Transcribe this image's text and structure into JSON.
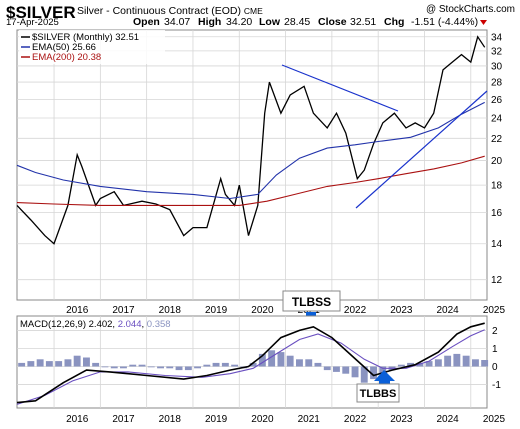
{
  "header": {
    "symbol": "$SILVER",
    "description": "Silver - Continuous Contract (EOD)",
    "exchange": "CME",
    "copyright": "@ StockCharts.com",
    "date": "17-Apr-2025",
    "open_label": "Open",
    "open": "34.07",
    "high_label": "High",
    "high": "34.20",
    "low_label": "Low",
    "low": "28.45",
    "close_label": "Close",
    "close": "32.51",
    "chg_label": "Chg",
    "chg": "-1.51 (-4.44%)"
  },
  "legend": {
    "series_label": "$SILVER (Monthly) 32.51",
    "ema50_label": "EMA(50) 25.66",
    "ema200_label": "EMA(200) 20.38"
  },
  "colors": {
    "price": "#000000",
    "ema50": "#2233aa",
    "ema200": "#aa1111",
    "trendline": "#1a33cc",
    "callout": "#0a5fd8",
    "macd_line": "#000000",
    "signal_line": "#6a4fc0",
    "histogram": "#8a93c0",
    "grid": "#d6d6d6"
  },
  "annotations": {
    "top": "TLBSS",
    "bottom": "TLBBS"
  },
  "macd_legend": {
    "label": "MACD(12,26,9)",
    "macd": "2.402",
    "signal": "2.044",
    "histogram": "0.358"
  },
  "chart_data": [
    {
      "type": "line",
      "title": "$SILVER (Monthly) 32.51",
      "x_ticks": [
        "2016",
        "2017",
        "2018",
        "2019",
        "2020",
        "2021",
        "2022",
        "2023",
        "2024",
        "2025"
      ],
      "y_scale": "log",
      "y_ticks": [
        "12",
        "14",
        "16",
        "18",
        "20",
        "22",
        "24",
        "26",
        "28",
        "30",
        "32",
        "34"
      ],
      "ylim": [
        11,
        35
      ],
      "x_range": [
        2015.2,
        2025.35
      ],
      "grid": true,
      "legend_position": "top-left",
      "series": [
        {
          "name": "$SILVER (Monthly)",
          "x": [
            2015.2,
            2015.5,
            2015.8,
            2016.0,
            2016.3,
            2016.5,
            2016.6,
            2016.9,
            2017.0,
            2017.3,
            2017.5,
            2017.9,
            2018.2,
            2018.5,
            2018.8,
            2019.0,
            2019.3,
            2019.6,
            2019.7,
            2019.9,
            2020.0,
            2020.2,
            2020.4,
            2020.55,
            2020.65,
            2020.9,
            2021.1,
            2021.4,
            2021.6,
            2021.9,
            2022.1,
            2022.3,
            2022.55,
            2022.7,
            2022.9,
            2023.1,
            2023.35,
            2023.6,
            2023.8,
            2024.0,
            2024.2,
            2024.4,
            2024.6,
            2024.8,
            2025.0,
            2025.15,
            2025.3
          ],
          "values": [
            16.5,
            15.5,
            14.5,
            14.0,
            16.5,
            20.5,
            19.5,
            16.5,
            17.0,
            17.5,
            16.5,
            16.8,
            16.6,
            16.2,
            14.5,
            15.0,
            15.0,
            18.5,
            17.3,
            16.5,
            18.0,
            14.5,
            16.5,
            24.5,
            28.0,
            24.5,
            26.5,
            27.5,
            24.5,
            23.0,
            24.5,
            22.5,
            18.5,
            19.2,
            21.5,
            23.5,
            24.5,
            23.0,
            23.5,
            23.0,
            24.5,
            29.5,
            30.5,
            31.5,
            30.5,
            34.0,
            32.5
          ],
          "color": "#000000"
        },
        {
          "name": "EMA(50)",
          "x": [
            2015.2,
            2015.6,
            2016.2,
            2017.0,
            2018.0,
            2019.0,
            2019.8,
            2020.4,
            2020.8,
            2021.3,
            2021.9,
            2022.5,
            2023.0,
            2023.7,
            2024.3,
            2024.8,
            2025.3
          ],
          "values": [
            19.6,
            19.0,
            18.4,
            17.9,
            17.5,
            17.3,
            17.0,
            17.3,
            18.8,
            20.2,
            21.1,
            21.4,
            21.7,
            22.1,
            23.0,
            24.4,
            25.66
          ],
          "color": "#2233aa"
        },
        {
          "name": "EMA(200)",
          "x": [
            2015.2,
            2016.0,
            2017.0,
            2018.0,
            2019.0,
            2020.0,
            2020.6,
            2021.2,
            2021.9,
            2022.5,
            2023.0,
            2023.6,
            2024.2,
            2024.8,
            2025.3
          ],
          "values": [
            16.7,
            16.6,
            16.5,
            16.5,
            16.5,
            16.5,
            16.8,
            17.3,
            17.9,
            18.2,
            18.5,
            18.9,
            19.3,
            19.8,
            20.38
          ],
          "color": "#aa1111"
        }
      ]
    },
    {
      "type": "line",
      "title": "MACD(12,26,9) 2.402, 2.044, 0.358",
      "x_ticks": [
        "2016",
        "2017",
        "2018",
        "2019",
        "2020",
        "2021",
        "2022",
        "2023",
        "2024",
        "2025"
      ],
      "y_ticks": [
        "2",
        "1",
        "0",
        "-1"
      ],
      "ylim": [
        -2.3,
        2.8
      ],
      "x_range": [
        2015.2,
        2025.35
      ],
      "grid": true,
      "series": [
        {
          "name": "MACD",
          "x": [
            2015.2,
            2015.6,
            2016.2,
            2016.7,
            2017.2,
            2018.0,
            2018.8,
            2019.3,
            2019.8,
            2020.2,
            2020.5,
            2020.9,
            2021.3,
            2021.6,
            2022.0,
            2022.6,
            2022.9,
            2023.3,
            2023.8,
            2024.3,
            2024.7,
            2025.0,
            2025.3
          ],
          "values": [
            -2.0,
            -1.9,
            -0.9,
            -0.2,
            -0.3,
            -0.5,
            -0.7,
            -0.5,
            -0.2,
            0.0,
            0.6,
            1.6,
            2.0,
            2.2,
            1.6,
            0.2,
            -0.5,
            -0.2,
            0.1,
            0.8,
            1.8,
            2.2,
            2.4
          ],
          "color": "#000000"
        },
        {
          "name": "Signal",
          "x": [
            2015.2,
            2015.8,
            2016.4,
            2017.0,
            2017.6,
            2018.4,
            2019.2,
            2019.8,
            2020.3,
            2020.8,
            2021.3,
            2021.7,
            2022.2,
            2022.7,
            2023.1,
            2023.6,
            2024.1,
            2024.6,
            2025.0,
            2025.3
          ],
          "values": [
            -2.1,
            -1.6,
            -0.8,
            -0.3,
            -0.3,
            -0.5,
            -0.6,
            -0.4,
            -0.1,
            0.7,
            1.5,
            1.8,
            1.3,
            0.4,
            -0.1,
            -0.1,
            0.3,
            1.1,
            1.7,
            2.04
          ],
          "color": "#6a4fc0"
        },
        {
          "name": "Histogram",
          "x": [
            2015.3,
            2015.5,
            2015.7,
            2015.9,
            2016.1,
            2016.3,
            2016.5,
            2016.7,
            2016.9,
            2017.1,
            2017.3,
            2017.5,
            2017.7,
            2017.9,
            2018.1,
            2018.3,
            2018.5,
            2018.7,
            2018.9,
            2019.1,
            2019.3,
            2019.5,
            2019.7,
            2019.9,
            2020.1,
            2020.3,
            2020.5,
            2020.7,
            2020.9,
            2021.1,
            2021.3,
            2021.5,
            2021.7,
            2021.9,
            2022.1,
            2022.3,
            2022.5,
            2022.7,
            2022.9,
            2023.1,
            2023.3,
            2023.5,
            2023.7,
            2023.9,
            2024.1,
            2024.3,
            2024.5,
            2024.7,
            2024.9,
            2025.1,
            2025.3
          ],
          "values": [
            0.2,
            0.3,
            0.4,
            0.3,
            0.3,
            0.4,
            0.6,
            0.5,
            0.2,
            0.0,
            -0.1,
            -0.1,
            0.1,
            0.1,
            0.0,
            -0.1,
            -0.1,
            -0.2,
            -0.2,
            -0.1,
            0.1,
            0.2,
            0.2,
            0.1,
            -0.1,
            0.2,
            0.7,
            0.9,
            0.8,
            0.6,
            0.4,
            0.4,
            0.2,
            -0.2,
            -0.3,
            -0.4,
            -0.6,
            -0.9,
            -0.7,
            -0.4,
            -0.2,
            0.1,
            0.2,
            0.2,
            0.3,
            0.4,
            0.6,
            0.7,
            0.6,
            0.4,
            0.36
          ],
          "color": "#8a93c0"
        }
      ]
    }
  ]
}
